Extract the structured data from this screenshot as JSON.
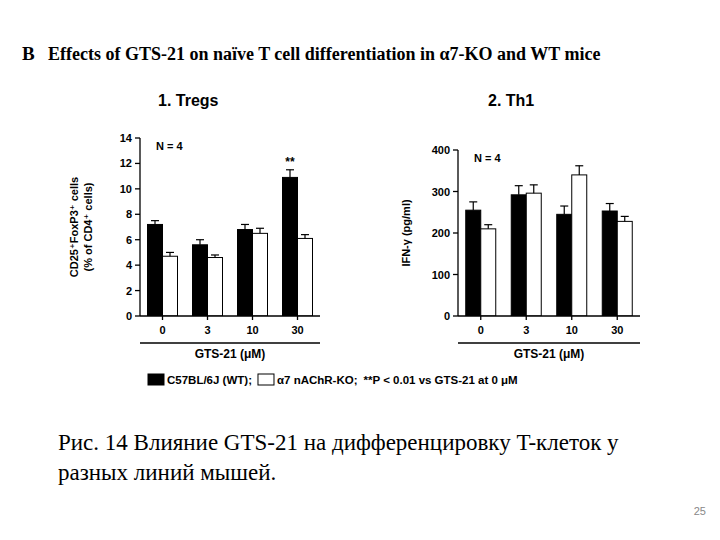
{
  "panel_label": "B",
  "header": "Effects of GTS-21 on naïve T cell differentiation in α7-KO and WT mice",
  "note": "**P < 0.01 vs GTS-21 at 0 μM",
  "caption": "Рис. 14 Влияние GTS-21 на дифференцировку T-клеток у разных линий мышей.",
  "page_number": "25",
  "chart_data": [
    {
      "type": "bar",
      "title": "1. Tregs",
      "annotation": "N = 4",
      "y_label": [
        "CD25⁺FoxP3⁺ cells",
        "(% of CD4⁺ cells)"
      ],
      "x_label": "GTS-21 (μM)",
      "categories": [
        "0",
        "3",
        "10",
        "30"
      ],
      "series": [
        {
          "name": "C57BL/6J (WT);",
          "color": "#000000",
          "values": [
            7.2,
            5.6,
            6.8,
            10.9
          ],
          "errors": [
            0.3,
            0.4,
            0.4,
            0.6
          ],
          "annotations": [
            null,
            null,
            null,
            "**"
          ]
        },
        {
          "name": "α7 nAChR-KO;",
          "color": "#ffffff",
          "values": [
            4.7,
            4.6,
            6.5,
            6.1
          ],
          "errors": [
            0.3,
            0.2,
            0.4,
            0.3
          ]
        }
      ],
      "ylim": [
        0,
        14
      ],
      "yticks": [
        0,
        2,
        4,
        6,
        8,
        10,
        12,
        14
      ],
      "grid": false
    },
    {
      "type": "bar",
      "title": "2. Th1",
      "annotation": "N = 4",
      "y_label": [
        "IFN-γ (pg/ml)"
      ],
      "x_label": "GTS-21 (μM)",
      "categories": [
        "0",
        "3",
        "10",
        "30"
      ],
      "series": [
        {
          "name": "C57BL/6J (WT);",
          "color": "#000000",
          "values": [
            255,
            292,
            245,
            253
          ],
          "errors": [
            20,
            22,
            20,
            18
          ]
        },
        {
          "name": "α7 nAChR-KO;",
          "color": "#ffffff",
          "values": [
            210,
            296,
            340,
            228
          ],
          "errors": [
            10,
            20,
            22,
            12
          ]
        }
      ],
      "ylim": [
        0,
        400
      ],
      "yticks": [
        0,
        100,
        200,
        300,
        400
      ],
      "grid": false
    }
  ]
}
